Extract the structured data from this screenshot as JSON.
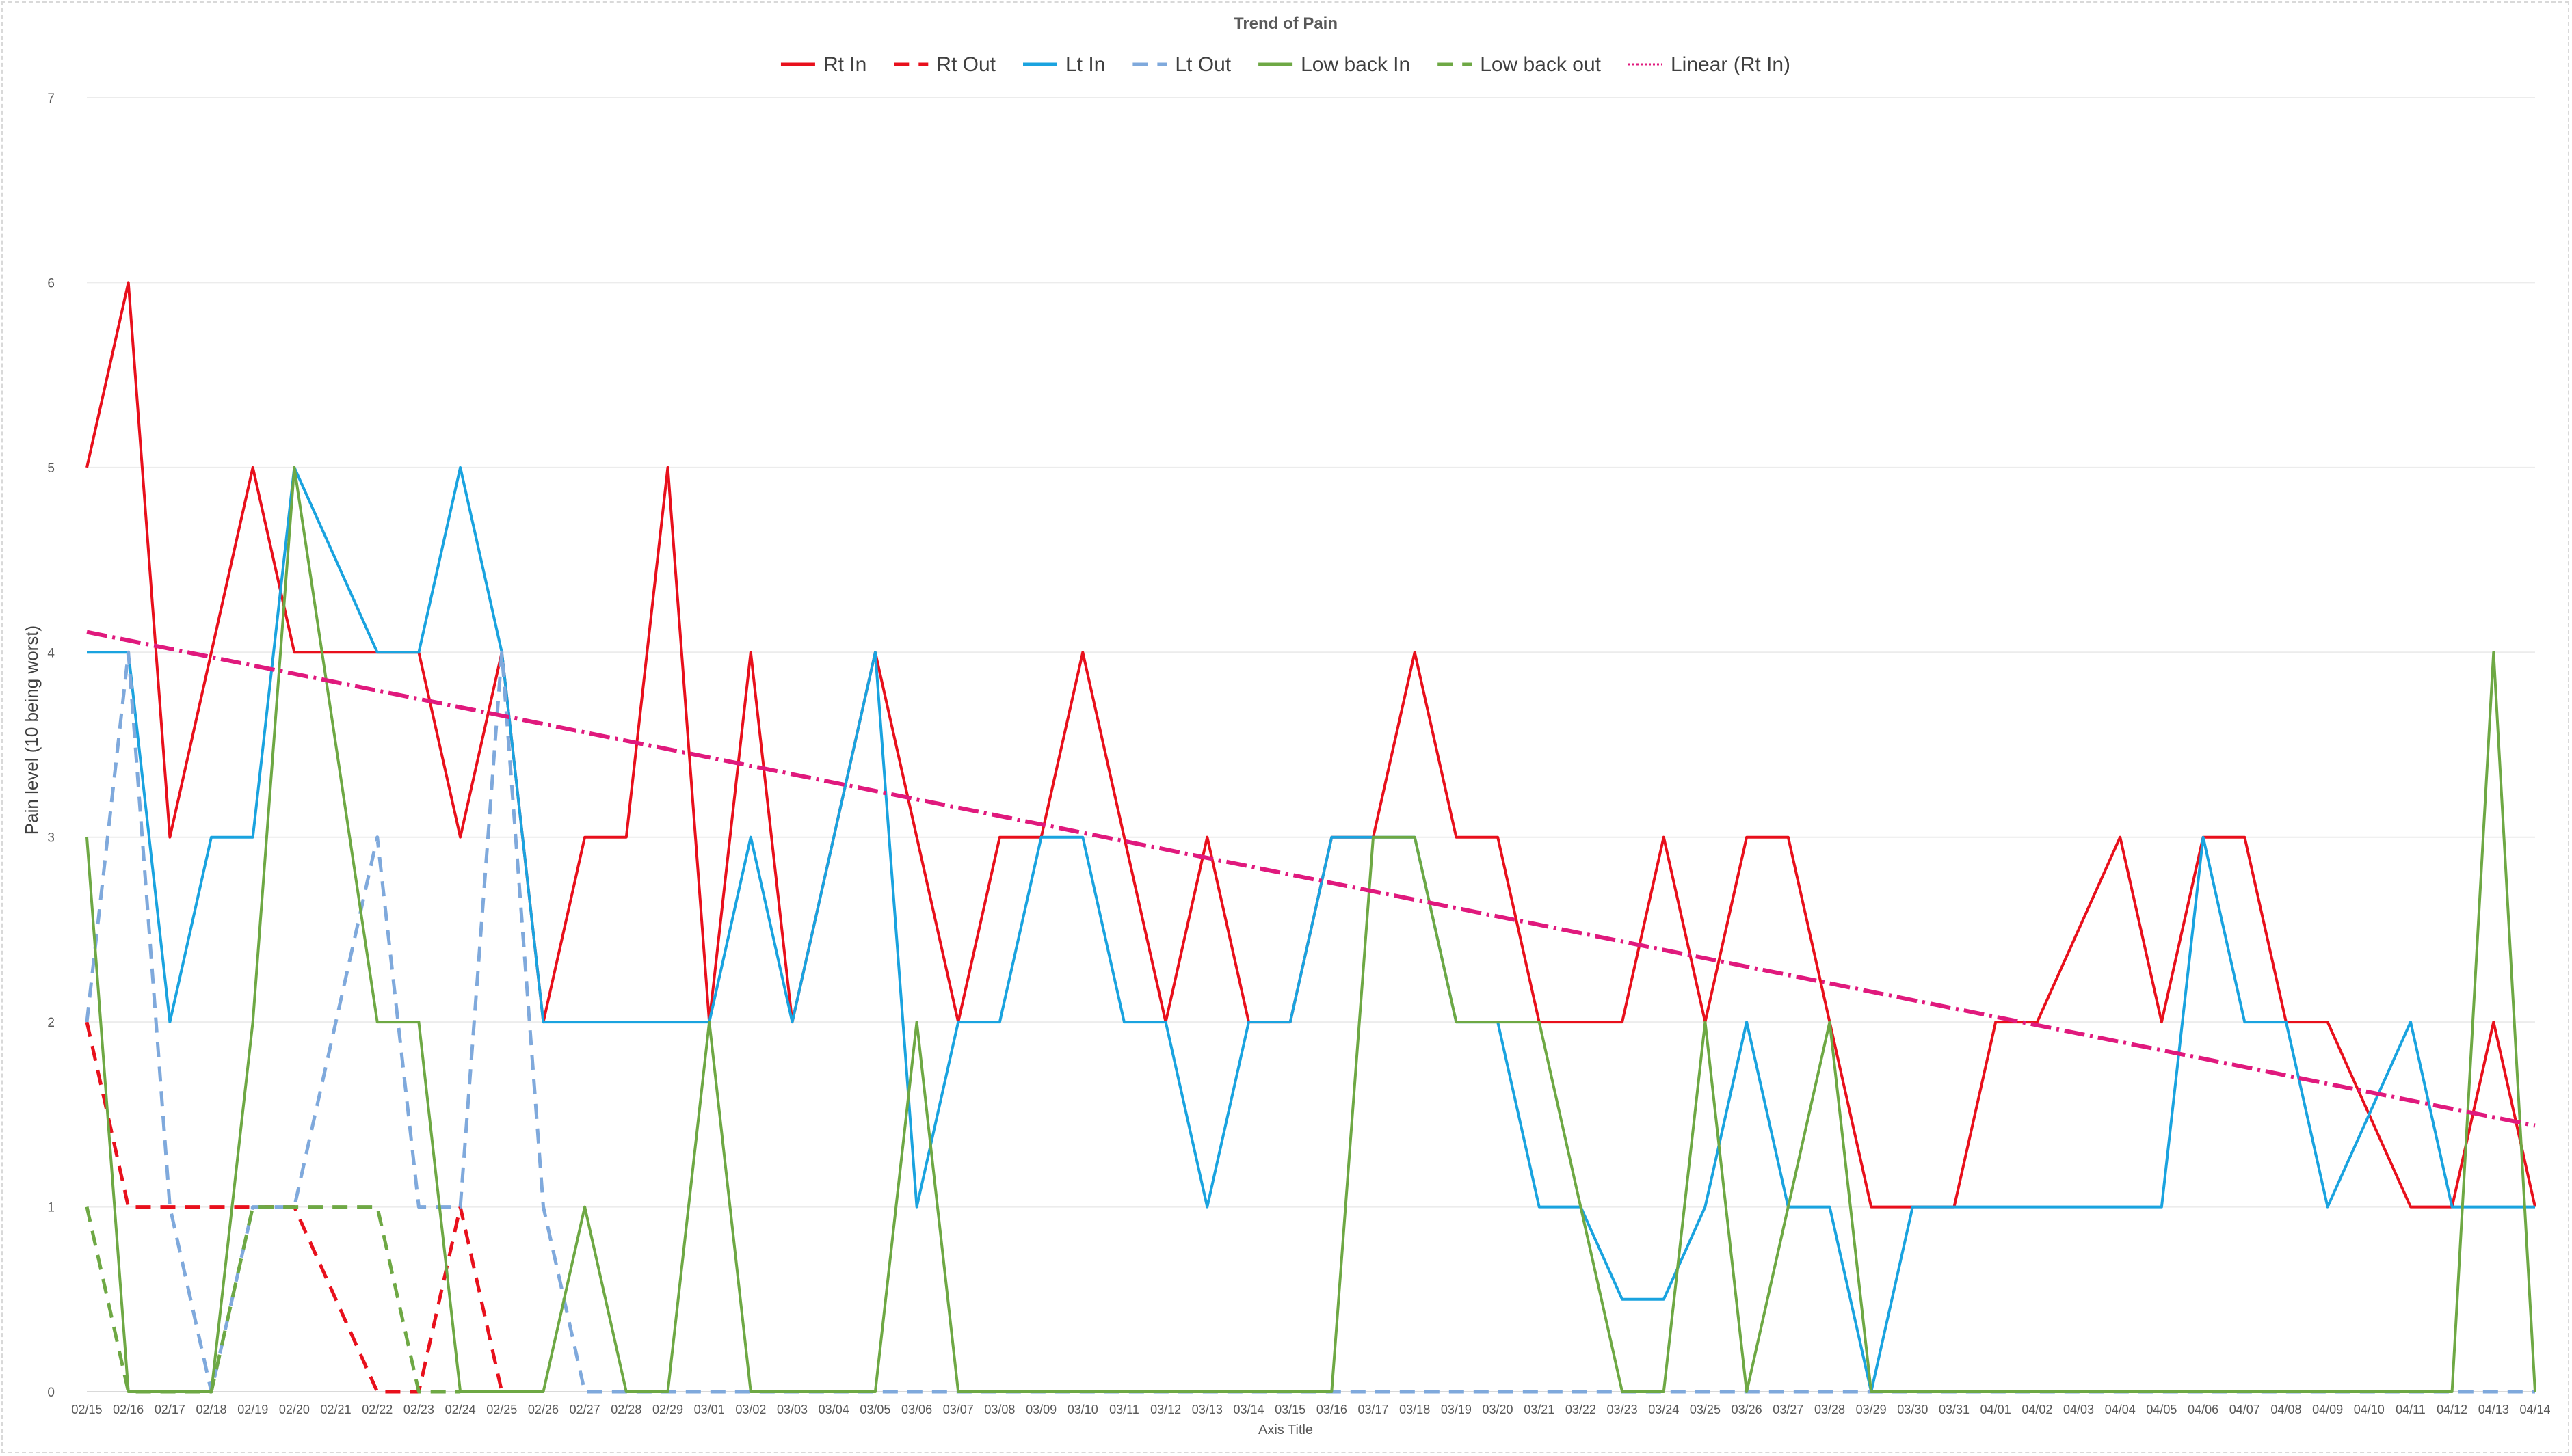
{
  "chart_data": {
    "type": "line",
    "title": "Trend of Pain",
    "xlabel": "Axis Title",
    "ylabel": "Pain level (10 being worst)",
    "ylim": [
      0,
      7
    ],
    "yticks": [
      "0",
      "1",
      "2",
      "3",
      "4",
      "5",
      "6",
      "7"
    ],
    "grid": true,
    "legend_position": "top",
    "categories": [
      "02/15",
      "02/16",
      "02/17",
      "02/18",
      "02/19",
      "02/20",
      "02/21",
      "02/22",
      "02/23",
      "02/24",
      "02/25",
      "02/26",
      "02/27",
      "02/28",
      "02/29",
      "03/01",
      "03/02",
      "03/03",
      "03/04",
      "03/05",
      "03/06",
      "03/07",
      "03/08",
      "03/09",
      "03/10",
      "03/11",
      "03/12",
      "03/13",
      "03/14",
      "03/15",
      "03/16",
      "03/17",
      "03/18",
      "03/19",
      "03/20",
      "03/21",
      "03/22",
      "03/23",
      "03/24",
      "03/25",
      "03/26",
      "03/27",
      "03/28",
      "03/29",
      "03/30",
      "03/31",
      "04/01",
      "04/02",
      "04/03",
      "04/04",
      "04/05",
      "04/06",
      "04/07",
      "04/08",
      "04/09",
      "04/10",
      "04/11",
      "04/12",
      "04/13",
      "04/14"
    ],
    "series": [
      {
        "name": "Rt In",
        "color": "#e8101c",
        "style": "solid",
        "values": [
          5,
          6,
          3,
          4,
          5,
          4,
          4,
          4,
          4,
          3,
          4,
          2,
          3,
          3,
          5,
          2,
          4,
          2,
          3,
          4,
          3,
          2,
          3,
          3,
          4,
          3,
          2,
          3,
          2,
          2,
          3,
          3,
          4,
          3,
          3,
          2,
          2,
          2,
          3,
          2,
          3,
          3,
          2,
          1,
          1,
          1,
          2,
          2,
          2.5,
          3,
          2,
          3,
          3,
          2,
          2,
          1.5,
          1,
          1,
          2,
          1
        ]
      },
      {
        "name": "Rt Out",
        "color": "#e8101c",
        "style": "dashed",
        "values": [
          2,
          1,
          1,
          1,
          1,
          1,
          0.5,
          0,
          0,
          1,
          0,
          null,
          null,
          null,
          null,
          null,
          null,
          null,
          null,
          null,
          null,
          null,
          null,
          null,
          null,
          null,
          null,
          null,
          null,
          null,
          null,
          null,
          null,
          null,
          null,
          null,
          null,
          null,
          null,
          null,
          null,
          null,
          null,
          null,
          null,
          null,
          null,
          null,
          null,
          null,
          null,
          null,
          null,
          null,
          null,
          null,
          null,
          null,
          null,
          null
        ]
      },
      {
        "name": "Lt In",
        "color": "#1aa3df",
        "style": "solid",
        "values": [
          4,
          4,
          2,
          3,
          3,
          5,
          4.5,
          4,
          4,
          5,
          4,
          2,
          2,
          2,
          2,
          2,
          3,
          2,
          3,
          4,
          1,
          2,
          2,
          3,
          3,
          2,
          2,
          1,
          2,
          2,
          3,
          3,
          3,
          2,
          2,
          1,
          1,
          0.5,
          0.5,
          1,
          2,
          1,
          1,
          0,
          1,
          1,
          1,
          1,
          1,
          1,
          1,
          3,
          2,
          2,
          1,
          1.5,
          2,
          1,
          1,
          1
        ]
      },
      {
        "name": "Lt Out",
        "color": "#7fa9dc",
        "style": "dashed",
        "values": [
          2,
          4,
          1,
          0,
          1,
          1,
          2,
          3,
          1,
          1,
          4,
          1,
          0,
          0,
          0,
          0,
          0,
          0,
          0,
          0,
          0,
          0,
          0,
          0,
          0,
          0,
          0,
          0,
          0,
          0,
          0,
          0,
          0,
          0,
          0,
          0,
          0,
          0,
          0,
          0,
          0,
          0,
          0,
          0,
          0,
          0,
          0,
          0,
          0,
          0,
          0,
          0,
          0,
          0,
          0,
          0,
          0,
          0,
          0,
          0
        ]
      },
      {
        "name": "Low back In",
        "color": "#6ea844",
        "style": "solid",
        "values": [
          3,
          0,
          0,
          0,
          2,
          5,
          3.5,
          2,
          2,
          0,
          0,
          0,
          1,
          0,
          0,
          2,
          0,
          0,
          0,
          0,
          2,
          0,
          0,
          0,
          0,
          0,
          0,
          0,
          0,
          0,
          0,
          3,
          3,
          2,
          2,
          2,
          1,
          0,
          0,
          2,
          0,
          1,
          2,
          0,
          0,
          0,
          0,
          0,
          0,
          0,
          0,
          0,
          0,
          0,
          0,
          0,
          0,
          0,
          4,
          0
        ]
      },
      {
        "name": "Low back out",
        "color": "#6ea844",
        "style": "dashed",
        "values": [
          1,
          0,
          0,
          0,
          1,
          1,
          1,
          1,
          0,
          0,
          null,
          null,
          null,
          null,
          null,
          null,
          null,
          null,
          null,
          null,
          null,
          null,
          null,
          null,
          null,
          null,
          null,
          null,
          null,
          null,
          null,
          null,
          null,
          null,
          null,
          null,
          null,
          null,
          null,
          null,
          null,
          null,
          null,
          null,
          null,
          null,
          null,
          null,
          null,
          null,
          null,
          null,
          null,
          null,
          null,
          null,
          null,
          null,
          null,
          null
        ]
      }
    ],
    "trendline": {
      "name": "Linear (Rt In)",
      "of": "Rt In",
      "color": "#e0197d",
      "start": 4.11,
      "end": 1.44
    }
  }
}
